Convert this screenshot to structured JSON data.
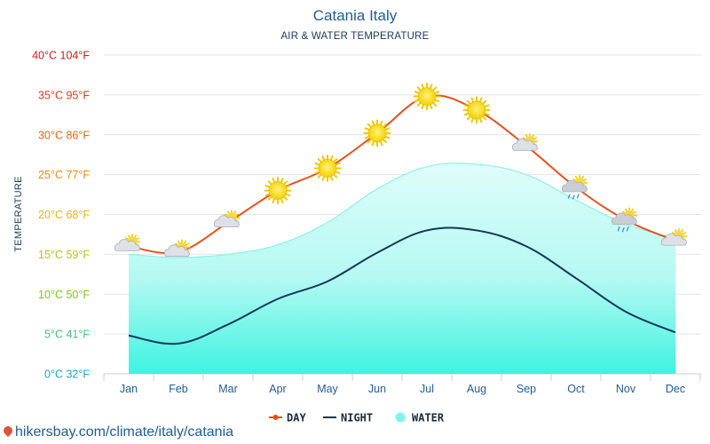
{
  "header": {
    "title": "Catania Italy",
    "subtitle": "AIR & WATER TEMPERATURE"
  },
  "footer": {
    "url": "hikersbay.com/climate/italy/catania"
  },
  "chart_data": {
    "type": "line",
    "title": "Catania Italy",
    "subtitle": "AIR & WATER TEMPERATURE",
    "ylabel": "TEMPERATURE",
    "xlabel": "",
    "categories": [
      "Jan",
      "Feb",
      "Mar",
      "Apr",
      "May",
      "Jun",
      "Jul",
      "Aug",
      "Sep",
      "Oct",
      "Nov",
      "Dec"
    ],
    "ylim": [
      0,
      40
    ],
    "yticks": [
      {
        "value": 0,
        "label": "0°C 32°F",
        "color": "#1fa3c9"
      },
      {
        "value": 5,
        "label": "5°C 41°F",
        "color": "#3fc47a"
      },
      {
        "value": 10,
        "label": "10°C 50°F",
        "color": "#78c81e"
      },
      {
        "value": 15,
        "label": "15°C 59°F",
        "color": "#b5c41a"
      },
      {
        "value": 20,
        "label": "20°C 68°F",
        "color": "#e6b512"
      },
      {
        "value": 25,
        "label": "25°C 77°F",
        "color": "#ee8a10"
      },
      {
        "value": 30,
        "label": "30°C 86°F",
        "color": "#ea6410"
      },
      {
        "value": 35,
        "label": "35°C 95°F",
        "color": "#e23a12"
      },
      {
        "value": 40,
        "label": "40°C 104°F",
        "color": "#d81c12"
      }
    ],
    "grid": true,
    "legend_position": "bottom",
    "series": [
      {
        "name": "DAY",
        "type": "line",
        "color": "#e8501c",
        "values": [
          16,
          15.3,
          19,
          23,
          25.8,
          30.2,
          34.8,
          33.1,
          28.6,
          23.4,
          19.3,
          16.7
        ]
      },
      {
        "name": "NIGHT",
        "type": "line",
        "color": "#12375a",
        "values": [
          4.8,
          3.8,
          6.2,
          9.4,
          11.6,
          15.2,
          18,
          18,
          16,
          12,
          7.8,
          5.2
        ]
      },
      {
        "name": "WATER",
        "type": "area",
        "color": "#7ff5ea",
        "values": [
          15,
          14.6,
          15,
          16.2,
          19,
          23.2,
          26,
          26.3,
          25,
          21.8,
          18.8,
          17
        ]
      }
    ],
    "weather_icons": [
      "partly-cloudy-icon",
      "partly-cloudy-icon",
      "partly-cloudy-icon",
      "sun-icon",
      "sun-icon",
      "sun-icon",
      "sun-icon",
      "sun-icon",
      "partly-cloudy-icon",
      "partly-cloudy-rain-icon",
      "partly-cloudy-rain-icon",
      "partly-cloudy-icon"
    ]
  }
}
